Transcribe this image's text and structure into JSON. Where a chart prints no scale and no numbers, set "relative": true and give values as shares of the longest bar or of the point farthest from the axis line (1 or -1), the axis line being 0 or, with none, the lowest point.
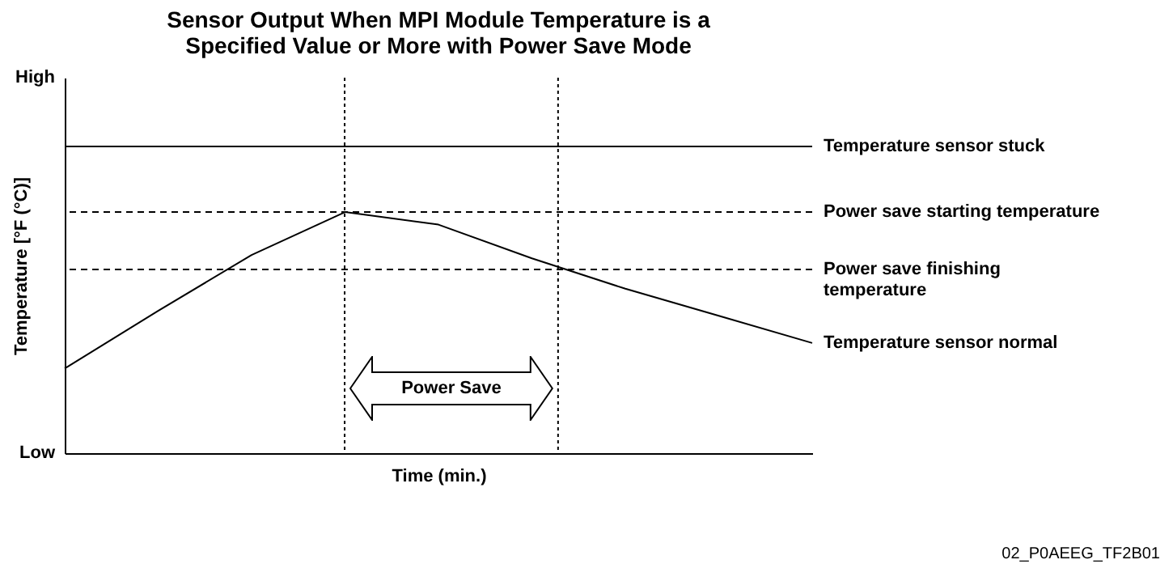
{
  "chart_data": {
    "type": "line",
    "title": "Sensor Output When MPI Module Temperature is a Specified Value or More with Power Save Mode",
    "xlabel": "Time (min.)",
    "ylabel": "Temperature [°F (°C)]",
    "relative": true,
    "categories": [
      null,
      null,
      null,
      null,
      null,
      null,
      null,
      null,
      null
    ],
    "marker": "none",
    "series": [
      {
        "name": "Temperature sensor stuck",
        "color": "#000000",
        "line_style": "solid",
        "values": [
          1,
          1,
          1,
          1,
          1,
          1,
          1,
          1,
          1
        ]
      },
      {
        "name": "Temperature sensor normal",
        "color": "#000000",
        "line_style": "solid",
        "values": [
          0.276,
          0.464,
          0.646,
          0.786,
          0.745,
          0.635,
          0.536,
          0.448,
          0.359
        ]
      }
    ],
    "ref_lines": [
      {
        "axis": "y",
        "value": 0.786,
        "label": "Power save starting temperature",
        "line_style": "dashed"
      },
      {
        "axis": "y",
        "value": 0.599,
        "label": "Power save finishing temperature",
        "line_style": "dashed"
      }
    ],
    "annotations": [
      "High",
      "Low",
      "Power Save",
      "02_P0AEEG_TF2B01"
    ]
  }
}
